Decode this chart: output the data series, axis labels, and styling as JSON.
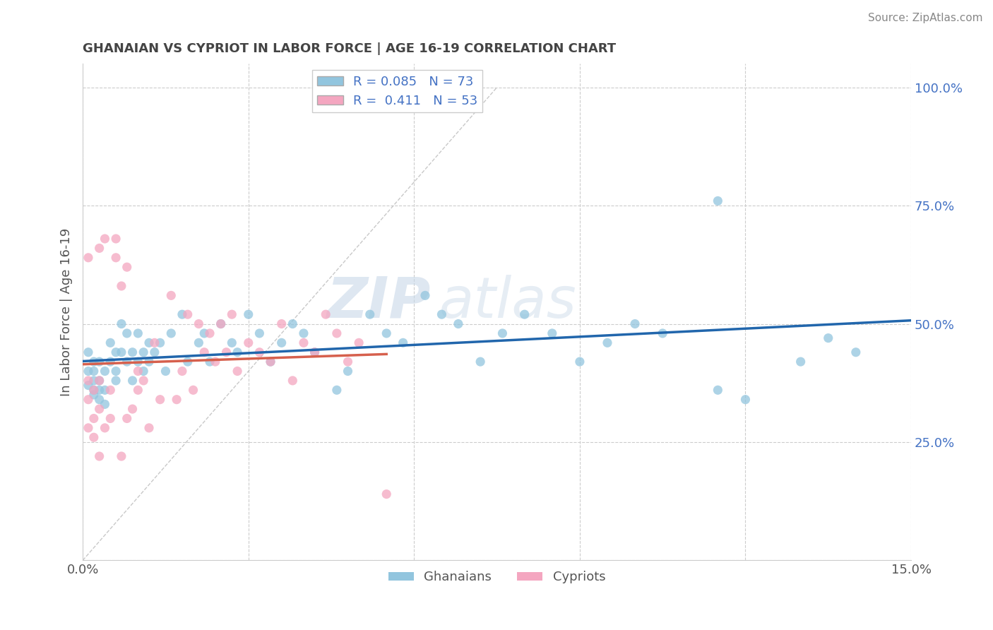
{
  "title": "GHANAIAN VS CYPRIOT IN LABOR FORCE | AGE 16-19 CORRELATION CHART",
  "source_text": "Source: ZipAtlas.com",
  "ylabel": "In Labor Force | Age 16-19",
  "xlim": [
    0.0,
    0.15
  ],
  "ylim": [
    0.0,
    1.05
  ],
  "xticks": [
    0.0,
    0.03,
    0.06,
    0.09,
    0.12,
    0.15
  ],
  "xticklabels": [
    "0.0%",
    "",
    "",
    "",
    "",
    "15.0%"
  ],
  "ytick_positions": [
    0.25,
    0.5,
    0.75,
    1.0
  ],
  "yticklabels": [
    "25.0%",
    "50.0%",
    "75.0%",
    "100.0%"
  ],
  "ghanaian_R": 0.085,
  "ghanaian_N": 73,
  "cypriot_R": 0.411,
  "cypriot_N": 53,
  "blue_color": "#92c5de",
  "pink_color": "#f4a6c0",
  "blue_line_color": "#2166ac",
  "pink_line_color": "#d6604d",
  "watermark_zip": "ZIP",
  "watermark_atlas": "atlas",
  "background_color": "#ffffff",
  "grid_color": "#cccccc",
  "ghanaian_x": [
    0.001,
    0.001,
    0.001,
    0.002,
    0.002,
    0.002,
    0.002,
    0.002,
    0.003,
    0.003,
    0.003,
    0.003,
    0.004,
    0.004,
    0.004,
    0.005,
    0.005,
    0.006,
    0.006,
    0.006,
    0.007,
    0.007,
    0.008,
    0.008,
    0.009,
    0.009,
    0.01,
    0.01,
    0.011,
    0.011,
    0.012,
    0.012,
    0.013,
    0.014,
    0.015,
    0.016,
    0.018,
    0.019,
    0.021,
    0.022,
    0.023,
    0.025,
    0.027,
    0.028,
    0.03,
    0.032,
    0.034,
    0.036,
    0.038,
    0.04,
    0.042,
    0.046,
    0.048,
    0.052,
    0.055,
    0.058,
    0.062,
    0.065,
    0.068,
    0.072,
    0.076,
    0.08,
    0.085,
    0.09,
    0.095,
    0.1,
    0.105,
    0.115,
    0.12,
    0.13,
    0.135,
    0.115,
    0.14
  ],
  "ghanaian_y": [
    0.37,
    0.4,
    0.44,
    0.36,
    0.38,
    0.42,
    0.4,
    0.35,
    0.34,
    0.38,
    0.42,
    0.36,
    0.33,
    0.4,
    0.36,
    0.46,
    0.42,
    0.38,
    0.44,
    0.4,
    0.5,
    0.44,
    0.48,
    0.42,
    0.44,
    0.38,
    0.48,
    0.42,
    0.44,
    0.4,
    0.46,
    0.42,
    0.44,
    0.46,
    0.4,
    0.48,
    0.52,
    0.42,
    0.46,
    0.48,
    0.42,
    0.5,
    0.46,
    0.44,
    0.52,
    0.48,
    0.42,
    0.46,
    0.5,
    0.48,
    0.44,
    0.36,
    0.4,
    0.52,
    0.48,
    0.46,
    0.56,
    0.52,
    0.5,
    0.42,
    0.48,
    0.52,
    0.48,
    0.42,
    0.46,
    0.5,
    0.48,
    0.76,
    0.34,
    0.42,
    0.47,
    0.36,
    0.44
  ],
  "cypriot_x": [
    0.001,
    0.001,
    0.001,
    0.001,
    0.002,
    0.002,
    0.002,
    0.003,
    0.003,
    0.003,
    0.003,
    0.004,
    0.004,
    0.005,
    0.005,
    0.006,
    0.006,
    0.007,
    0.007,
    0.008,
    0.008,
    0.009,
    0.01,
    0.01,
    0.011,
    0.012,
    0.013,
    0.014,
    0.016,
    0.017,
    0.018,
    0.019,
    0.02,
    0.021,
    0.022,
    0.023,
    0.024,
    0.025,
    0.026,
    0.027,
    0.028,
    0.03,
    0.032,
    0.034,
    0.036,
    0.038,
    0.04,
    0.042,
    0.044,
    0.046,
    0.048,
    0.05,
    0.055
  ],
  "cypriot_y": [
    0.28,
    0.34,
    0.38,
    0.64,
    0.26,
    0.3,
    0.36,
    0.22,
    0.32,
    0.38,
    0.66,
    0.28,
    0.68,
    0.3,
    0.36,
    0.64,
    0.68,
    0.22,
    0.58,
    0.3,
    0.62,
    0.32,
    0.36,
    0.4,
    0.38,
    0.28,
    0.46,
    0.34,
    0.56,
    0.34,
    0.4,
    0.52,
    0.36,
    0.5,
    0.44,
    0.48,
    0.42,
    0.5,
    0.44,
    0.52,
    0.4,
    0.46,
    0.44,
    0.42,
    0.5,
    0.38,
    0.46,
    0.44,
    0.52,
    0.48,
    0.42,
    0.46,
    0.14
  ]
}
